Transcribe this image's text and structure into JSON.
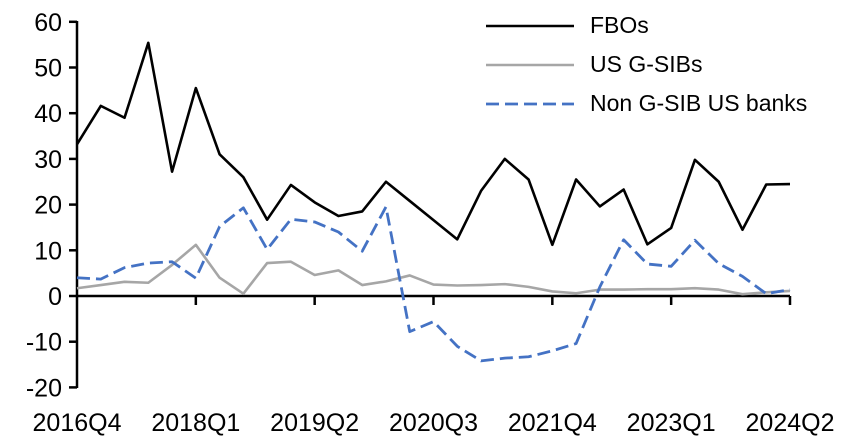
{
  "chart_data": {
    "type": "line",
    "title": "",
    "xlabel": "",
    "ylabel": "",
    "grid": false,
    "legend_position": "top-right",
    "ylim": [
      -20,
      60
    ],
    "yticks": [
      60,
      50,
      40,
      30,
      20,
      10,
      0,
      -10,
      -20
    ],
    "x_tick_every": 5,
    "x_tick_labels": [
      "2016Q4",
      "2018Q1",
      "2019Q2",
      "2020Q3",
      "2021Q4",
      "2023Q1",
      "2024Q2"
    ],
    "x_categories": [
      "2016Q4",
      "2017Q1",
      "2017Q2",
      "2017Q3",
      "2017Q4",
      "2018Q1",
      "2018Q2",
      "2018Q3",
      "2018Q4",
      "2019Q1",
      "2019Q2",
      "2019Q3",
      "2019Q4",
      "2020Q1",
      "2020Q2",
      "2020Q3",
      "2020Q4",
      "2021Q1",
      "2021Q2",
      "2021Q3",
      "2021Q4",
      "2022Q1",
      "2022Q2",
      "2022Q3",
      "2022Q4",
      "2023Q1",
      "2023Q2",
      "2023Q3",
      "2023Q4",
      "2024Q1",
      "2024Q2"
    ],
    "series": [
      {
        "name": "FBOs",
        "color": "#000000",
        "style": "solid",
        "values": [
          33.2,
          41.6,
          39.0,
          55.4,
          27.2,
          45.5,
          31.0,
          26.0,
          16.7,
          24.3,
          20.5,
          17.5,
          18.5,
          25.0,
          20.8,
          16.6,
          12.4,
          23.0,
          30.0,
          25.5,
          11.2,
          25.5,
          19.6,
          23.3,
          11.3,
          14.9,
          29.8,
          25.0,
          14.5,
          24.4,
          24.5
        ]
      },
      {
        "name": "US G-SIBs",
        "color": "#a6a6a6",
        "style": "solid",
        "values": [
          1.7,
          2.4,
          3.1,
          2.9,
          6.8,
          11.2,
          4.0,
          0.5,
          7.2,
          7.5,
          4.6,
          5.6,
          2.4,
          3.2,
          4.5,
          2.5,
          2.3,
          2.4,
          2.6,
          2.0,
          1.0,
          0.6,
          1.4,
          1.4,
          1.5,
          1.5,
          1.7,
          1.4,
          0.4,
          0.8,
          1.1
        ]
      },
      {
        "name": "Non G-SIB US banks",
        "color": "#4472c4",
        "style": "dashed",
        "values": [
          4.0,
          3.7,
          6.2,
          7.2,
          7.5,
          3.9,
          15.2,
          19.3,
          10.2,
          16.8,
          16.2,
          14.0,
          9.8,
          19.5,
          -7.8,
          -5.6,
          -11.0,
          -14.2,
          -13.6,
          -13.3,
          -12.0,
          -10.4,
          2.0,
          12.3,
          7.0,
          6.5,
          12.2,
          7.1,
          4.3,
          0.5,
          1.4
        ]
      }
    ]
  }
}
